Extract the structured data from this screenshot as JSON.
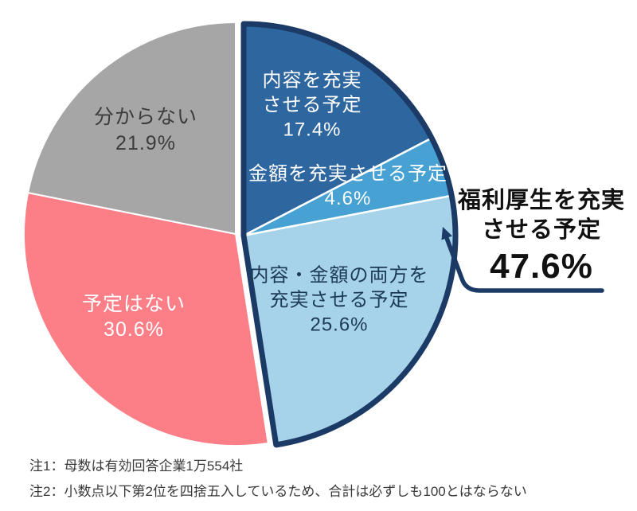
{
  "chart_data": {
    "type": "pie",
    "title": "",
    "start_angle_deg": 0,
    "direction": "clockwise",
    "segments": [
      {
        "label": "内容を充実させる予定",
        "value": 17.4,
        "pct_text": "17.4%",
        "color": "#2E66A0",
        "group": "plan",
        "label_lines": [
          "内容を充実",
          "させる予定"
        ]
      },
      {
        "label": "金額を充実させる予定",
        "value": 4.6,
        "pct_text": "4.6%",
        "color": "#47A1D3",
        "group": "plan",
        "label_lines": [
          "金額を充実させる予定"
        ]
      },
      {
        "label": "内容・金額の両方を充実させる予定",
        "value": 25.6,
        "pct_text": "25.6%",
        "color": "#A6D3E9",
        "group": "plan",
        "label_lines": [
          "内容・金額の両方を",
          "充実させる予定"
        ]
      },
      {
        "label": "予定はない",
        "value": 30.6,
        "pct_text": "30.6%",
        "color": "#FC7F88",
        "group": "none",
        "label_lines": [
          "予定はない"
        ]
      },
      {
        "label": "分からない",
        "value": 21.9,
        "pct_text": "21.9%",
        "color": "#A6A6A6",
        "group": "unknown",
        "label_lines": [
          "分からない"
        ]
      }
    ],
    "group_annotation": {
      "group": "plan",
      "label": "福利厚生を充実させる予定",
      "label_lines": [
        "福利厚生を充実",
        "させる予定"
      ],
      "value": 47.6,
      "pct_text": "47.6%",
      "outline_color": "#1B3A66"
    }
  },
  "notes": [
    "注1：母数は有効回答企業1万554社",
    "注2：小数点以下第2位を四捨五入しているため、合計は必ずしも100とはならない"
  ]
}
